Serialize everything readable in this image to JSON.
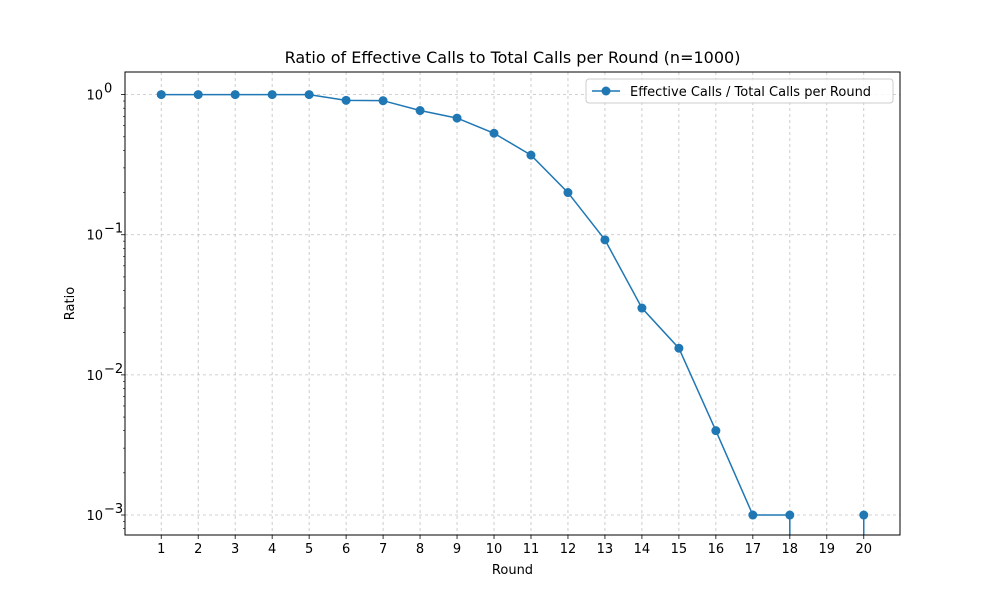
{
  "chart_data": {
    "type": "line",
    "title": "Ratio of Effective Calls to Total Calls per Round (n=1000)",
    "xlabel": "Round",
    "ylabel": "Ratio",
    "y_scale": "log",
    "x_ticks": [
      1,
      2,
      3,
      4,
      5,
      6,
      7,
      8,
      9,
      10,
      11,
      12,
      13,
      14,
      15,
      16,
      17,
      18,
      19,
      20
    ],
    "y_ticks": [
      {
        "value": 1,
        "base": "10",
        "exp": "0"
      },
      {
        "value": 0.1,
        "base": "10",
        "exp": "−1"
      },
      {
        "value": 0.01,
        "base": "10",
        "exp": "−2"
      },
      {
        "value": 0.001,
        "base": "10",
        "exp": "−3"
      }
    ],
    "grid": true,
    "legend_position": "top-right",
    "series": [
      {
        "name": "Effective Calls / Total Calls per Round",
        "color": "#1f77b4",
        "marker": "circle",
        "x": [
          1,
          2,
          3,
          4,
          5,
          6,
          7,
          8,
          9,
          10,
          11,
          12,
          13,
          14,
          15,
          16,
          17,
          18,
          19,
          20
        ],
        "y": [
          1.0,
          1.0,
          1.0,
          1.0,
          1.0,
          0.91,
          0.905,
          0.77,
          0.68,
          0.53,
          0.37,
          0.2,
          0.092,
          0.03,
          0.0155,
          0.004,
          0.001,
          0.001,
          0,
          0.001
        ]
      }
    ]
  }
}
